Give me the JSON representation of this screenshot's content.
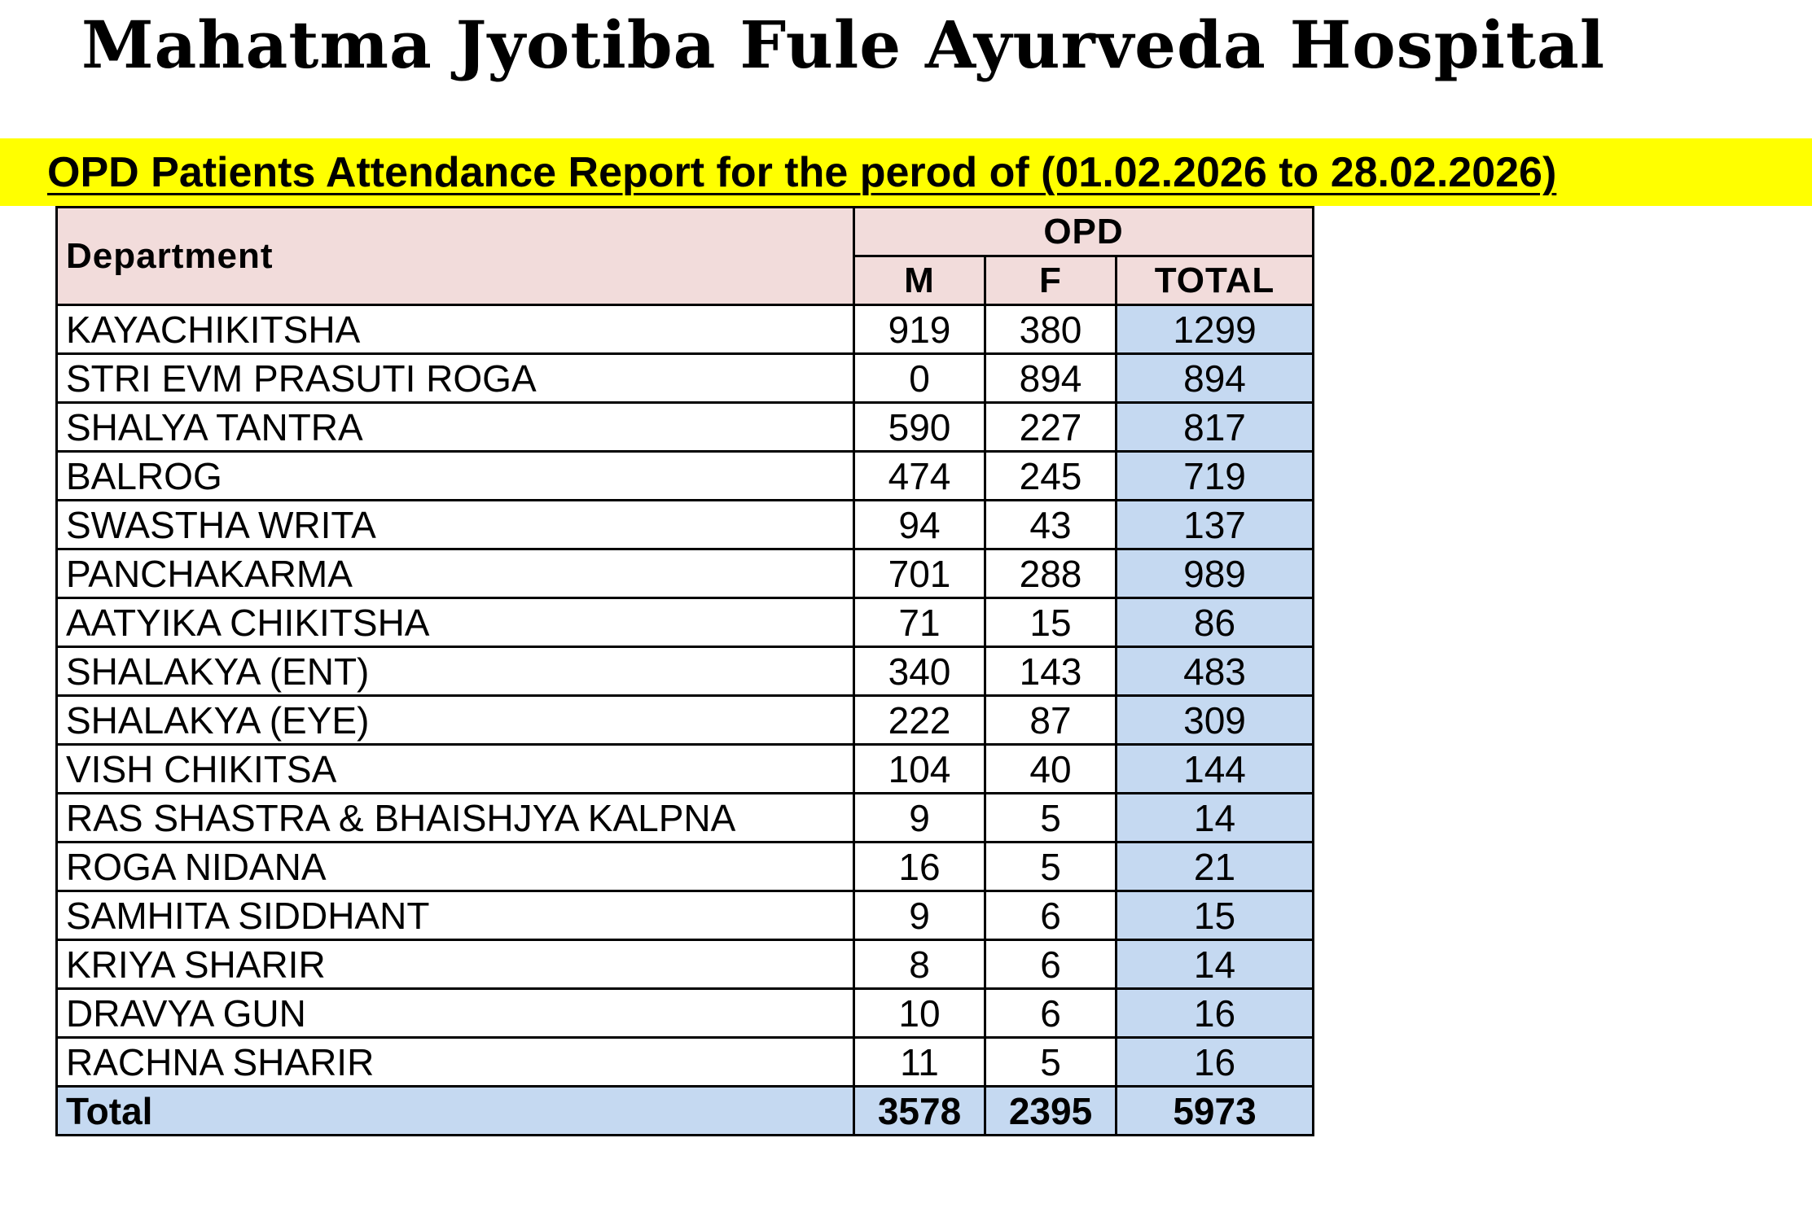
{
  "header": {
    "title": "Mahatma Jyotiba Fule Ayurveda Hospital",
    "subtitle": "OPD Patients Attendance Report for the perod of (01.02.2026 to 28.02.2026)"
  },
  "table": {
    "columns": {
      "department": "Department",
      "group": "OPD",
      "m": "M",
      "f": "F",
      "total": "TOTAL"
    },
    "rows": [
      [
        "KAYACHIKITSHA",
        919,
        380,
        1299
      ],
      [
        "STRI EVM PRASUTI ROGA",
        0,
        894,
        894
      ],
      [
        "SHALYA TANTRA",
        590,
        227,
        817
      ],
      [
        "BALROG",
        474,
        245,
        719
      ],
      [
        "SWASTHA WRITA",
        94,
        43,
        137
      ],
      [
        "PANCHAKARMA",
        701,
        288,
        989
      ],
      [
        "AATYIKA CHIKITSHA",
        71,
        15,
        86
      ],
      [
        "SHALAKYA (ENT)",
        340,
        143,
        483
      ],
      [
        "SHALAKYA (EYE)",
        222,
        87,
        309
      ],
      [
        "VISH CHIKITSA",
        104,
        40,
        144
      ],
      [
        "RAS SHASTRA & BHAISHJYA KALPNA",
        9,
        5,
        14
      ],
      [
        "ROGA NIDANA",
        16,
        5,
        21
      ],
      [
        "SAMHITA SIDDHANT",
        9,
        6,
        15
      ],
      [
        "KRIYA SHARIR",
        8,
        6,
        14
      ],
      [
        "DRAVYA GUN",
        10,
        6,
        16
      ],
      [
        "RACHNA SHARIR",
        11,
        5,
        16
      ]
    ],
    "total_row": [
      "Total",
      3578,
      2395,
      5973
    ]
  }
}
